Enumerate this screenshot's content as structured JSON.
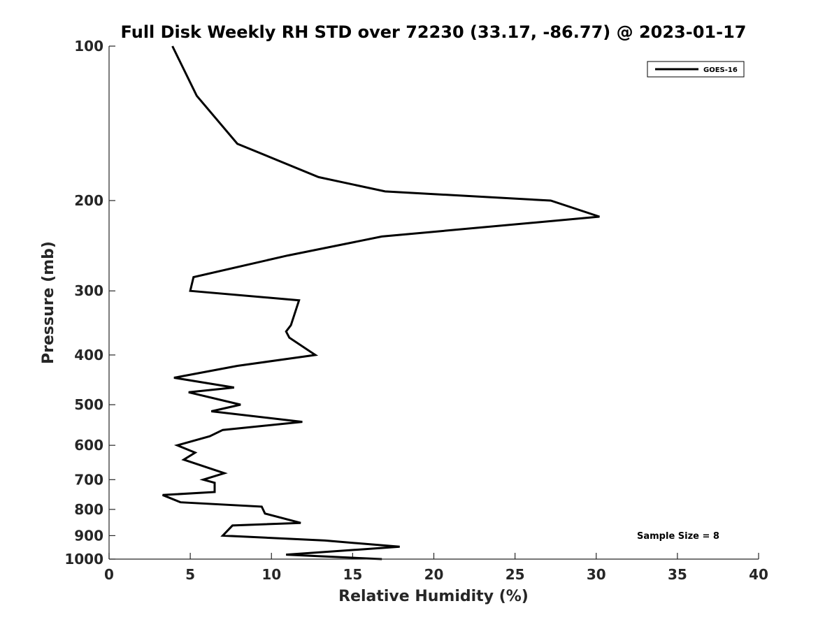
{
  "chart_data": {
    "type": "line",
    "title": "Full Disk Weekly RH STD over 72230 (33.17, -86.77) @ 2023-01-17",
    "xlabel": "Relative Humidity (%)",
    "ylabel": "Pressure (mb)",
    "xlim": [
      0,
      40
    ],
    "ylim": [
      100,
      1000
    ],
    "y_scale": "log",
    "y_direction": "reversed",
    "x_ticks": [
      0,
      5,
      10,
      15,
      20,
      25,
      30,
      35,
      40
    ],
    "y_ticks": [
      100,
      200,
      300,
      400,
      500,
      600,
      700,
      800,
      900,
      1000
    ],
    "grid": false,
    "legend": {
      "placement": "top-right",
      "entries": [
        "GOES-16"
      ]
    },
    "annotation": "Sample Size = 8",
    "series": [
      {
        "name": "GOES-16",
        "color": "#000000",
        "points": [
          [
            3.9,
            100
          ],
          [
            5.4,
            125
          ],
          [
            7.9,
            155
          ],
          [
            12.9,
            180
          ],
          [
            17.0,
            192
          ],
          [
            27.2,
            200
          ],
          [
            30.2,
            215
          ],
          [
            16.8,
            235
          ],
          [
            11.0,
            256
          ],
          [
            5.2,
            282
          ],
          [
            5.0,
            300
          ],
          [
            11.7,
            313
          ],
          [
            11.2,
            350
          ],
          [
            10.9,
            360
          ],
          [
            11.1,
            370
          ],
          [
            12.7,
            400
          ],
          [
            7.9,
            420
          ],
          [
            4.0,
            443
          ],
          [
            7.7,
            463
          ],
          [
            4.9,
            473
          ],
          [
            8.1,
            500
          ],
          [
            6.3,
            515
          ],
          [
            11.9,
            540
          ],
          [
            7.0,
            560
          ],
          [
            6.2,
            576
          ],
          [
            4.2,
            600
          ],
          [
            5.3,
            620
          ],
          [
            4.6,
            640
          ],
          [
            7.1,
            680
          ],
          [
            5.8,
            700
          ],
          [
            6.5,
            710
          ],
          [
            6.5,
            740
          ],
          [
            3.3,
            750
          ],
          [
            4.4,
            775
          ],
          [
            9.4,
            790
          ],
          [
            9.6,
            815
          ],
          [
            11.8,
            850
          ],
          [
            7.6,
            860
          ],
          [
            7.0,
            900
          ],
          [
            13.3,
            920
          ],
          [
            17.9,
            946
          ],
          [
            10.9,
            980
          ],
          [
            16.8,
            1000
          ]
        ]
      }
    ]
  }
}
